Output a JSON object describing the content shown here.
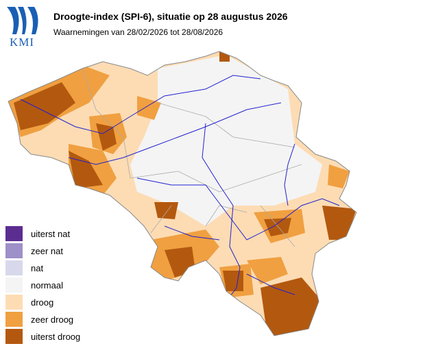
{
  "logo": {
    "text": "KMI"
  },
  "header": {
    "title": "Droogte-index (SPI-6), situatie op 28 augustus 2026",
    "subtitle": "Waarnemingen van 28/02/2026 tot 28/08/2026"
  },
  "legend": {
    "items": [
      {
        "label": "uiterst nat",
        "color": "#5c2d91"
      },
      {
        "label": "zeer nat",
        "color": "#9e90c8"
      },
      {
        "label": "nat",
        "color": "#d8d8ec"
      },
      {
        "label": "normaal",
        "color": "#f4f4f4"
      },
      {
        "label": "droog",
        "color": "#fddcb4"
      },
      {
        "label": "zeer droog",
        "color": "#f0a040"
      },
      {
        "label": "uiterst droog",
        "color": "#b3590f"
      }
    ]
  }
}
